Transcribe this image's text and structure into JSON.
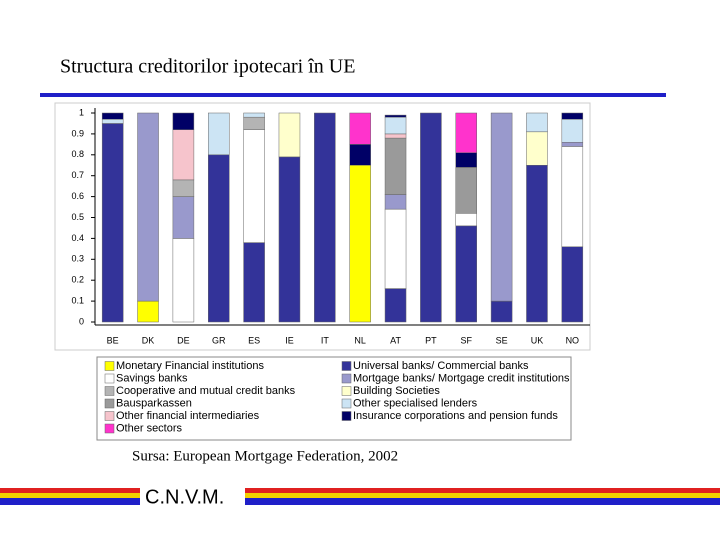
{
  "slide": {
    "title": "Structura creditorilor ipotecari în UE",
    "source": "Sursa: European Mortgage Federation, 2002",
    "footer": "C.N.V.M."
  },
  "chart_data": {
    "type": "stacked_bar",
    "categories": [
      "BE",
      "DK",
      "DE",
      "GR",
      "ES",
      "IE",
      "IT",
      "NL",
      "AT",
      "PT",
      "SF",
      "SE",
      "UK",
      "NO"
    ],
    "ylim": [
      0,
      1
    ],
    "yticks": [
      0,
      0.1,
      0.2,
      0.3,
      0.4,
      0.5,
      0.6,
      0.7,
      0.8,
      0.9,
      1
    ],
    "series": [
      {
        "name": "Monetary Financial institutions",
        "color": "#ffff00",
        "values": [
          null,
          0.1,
          null,
          null,
          null,
          null,
          null,
          0.75,
          null,
          null,
          null,
          null,
          null,
          null
        ]
      },
      {
        "name": "Savings banks",
        "color": "#ffffff",
        "values": [
          null,
          null,
          0.4,
          null,
          0.54,
          null,
          null,
          null,
          0.38,
          null,
          0.06,
          null,
          null,
          0.48
        ]
      },
      {
        "name": "Cooperative and mutual credit banks",
        "color": "#b4b4b4",
        "values": [
          null,
          null,
          0.08,
          null,
          0.06,
          null,
          null,
          null,
          null,
          null,
          null,
          null,
          null,
          null
        ]
      },
      {
        "name": "Bausparkassen",
        "color": "#9a9a9a",
        "values": [
          null,
          null,
          null,
          null,
          null,
          null,
          null,
          null,
          0.27,
          null,
          0.22,
          null,
          null,
          null
        ]
      },
      {
        "name": "Other financial intermediaries",
        "color": "#f6c4cc",
        "values": [
          null,
          null,
          0.24,
          null,
          null,
          null,
          null,
          null,
          0.02,
          null,
          null,
          null,
          null,
          null
        ]
      },
      {
        "name": "Other sectors",
        "color": "#ff33cc",
        "values": [
          null,
          null,
          null,
          null,
          null,
          null,
          null,
          0.15,
          null,
          null,
          0.19,
          null,
          null,
          null
        ]
      },
      {
        "name": "Universal banks/ Commercial banks",
        "color": "#333399",
        "values": [
          0.95,
          null,
          null,
          0.8,
          0.38,
          0.79,
          1.0,
          null,
          0.16,
          1.0,
          0.46,
          0.1,
          0.75,
          0.36
        ]
      },
      {
        "name": "Mortgage banks/ Mortgage credit institutions",
        "color": "#9999cc",
        "values": [
          null,
          0.9,
          0.2,
          null,
          null,
          null,
          null,
          null,
          0.07,
          null,
          null,
          0.9,
          null,
          0.02
        ]
      },
      {
        "name": "Building Societies",
        "color": "#ffffcc",
        "values": [
          null,
          null,
          null,
          null,
          null,
          0.21,
          null,
          null,
          null,
          null,
          null,
          null,
          0.16,
          null
        ]
      },
      {
        "name": "Other specialised lenders",
        "color": "#cce4f4",
        "values": [
          0.02,
          null,
          null,
          0.2,
          0.02,
          null,
          null,
          null,
          0.08,
          null,
          null,
          null,
          0.09,
          0.11
        ]
      },
      {
        "name": "Insurance corporations and pension funds",
        "color": "#000066",
        "values": [
          0.03,
          null,
          0.08,
          null,
          null,
          null,
          null,
          0.1,
          0.01,
          null,
          0.07,
          null,
          null,
          0.03
        ]
      }
    ]
  }
}
